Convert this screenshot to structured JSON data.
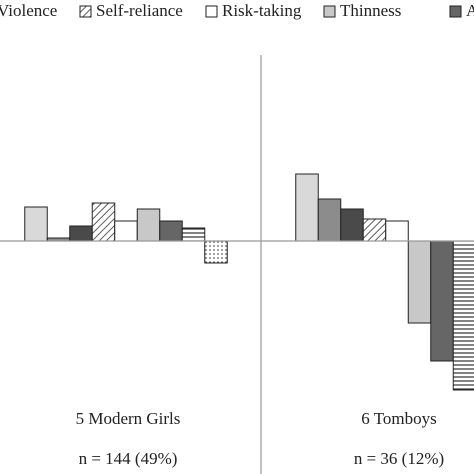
{
  "chart_data": {
    "type": "bar",
    "categories": [
      "5 Modern Girls",
      "6 Tomboys"
    ],
    "category_notes": [
      "n = 144 (49%)",
      "n = 36 (12%)"
    ],
    "ylim": [
      -200,
      200
    ],
    "series": [
      {
        "name": null,
        "color": "#d9d9d9",
        "pattern": "solid",
        "values": [
          34,
          67
        ]
      },
      {
        "name": null,
        "color": "#8c8c8c",
        "pattern": "solid",
        "values": [
          3,
          42
        ]
      },
      {
        "name": "Violence",
        "color": "#4a4a4a",
        "pattern": "solid",
        "values": [
          15,
          32
        ]
      },
      {
        "name": "Self-reliance",
        "color": "#ffffff",
        "pattern": "diagonal",
        "values": [
          38,
          22
        ]
      },
      {
        "name": "Risk-taking",
        "color": "#ffffff",
        "pattern": "solid",
        "values": [
          20,
          20
        ]
      },
      {
        "name": "Thinness",
        "color": "#c8c8c8",
        "pattern": "solid",
        "values": [
          32,
          -82
        ]
      },
      {
        "name": "A",
        "color": "#666666",
        "pattern": "solid",
        "values": [
          20,
          -120
        ]
      },
      {
        "name": null,
        "color": "#ffffff",
        "pattern": "horizontal",
        "values": [
          13,
          -149
        ]
      },
      {
        "name": null,
        "color": "#ffffff",
        "pattern": "dotted",
        "values": [
          -22,
          null
        ]
      }
    ]
  }
}
